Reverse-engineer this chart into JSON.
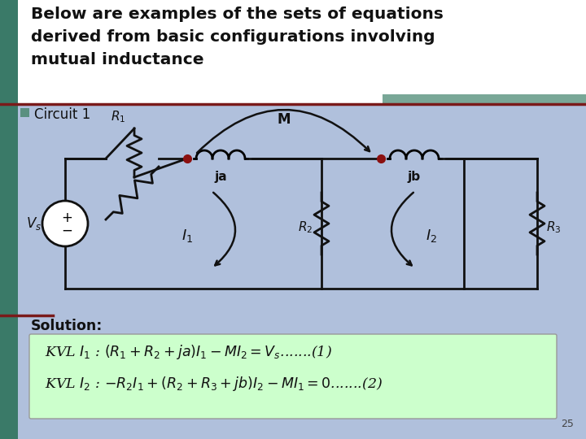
{
  "bg_top_color": "#f0f0f8",
  "bg_bottom_color": "#b0c0dc",
  "left_bar_color": "#3a7a68",
  "title_text": "Below are examples of the sets of equations\nderived from basic configurations involving\nmutual inductance",
  "title_color": "#111111",
  "title_fontsize": 14.5,
  "circuit1_label": "Circuit 1",
  "circuit_bullet_color": "#5a9080",
  "solution_label": "Solution:",
  "eq_box_color": "#ccffcc",
  "page_num": "25",
  "accent_bar_color": "#6a9e8c",
  "dark_red_line": "#7a1a1a",
  "dot_color": "#8b1010",
  "circuit_bg": "#d8e4f4",
  "wire_color": "#111111",
  "top_bg": "#ffffff"
}
